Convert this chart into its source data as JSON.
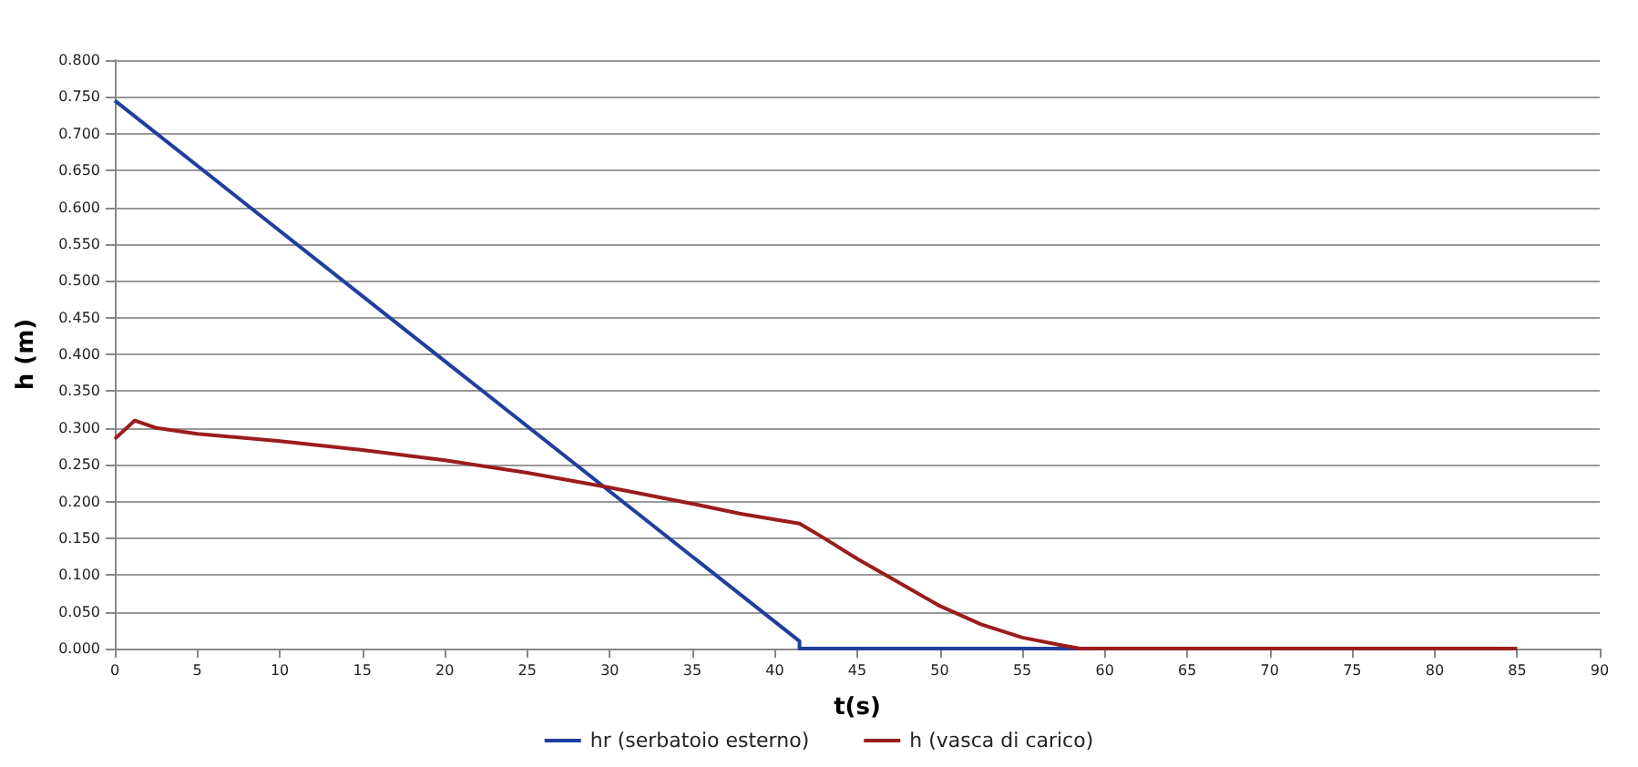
{
  "chart_data": {
    "type": "line",
    "xlabel": "t(s)",
    "ylabel": "h (m)",
    "xlim": [
      0,
      90
    ],
    "xticks": [
      0,
      5,
      10,
      15,
      20,
      25,
      30,
      35,
      40,
      45,
      50,
      55,
      60,
      65,
      70,
      75,
      80,
      85,
      90
    ],
    "ylim": [
      0,
      0.8
    ],
    "yticks": [
      {
        "value": 0,
        "label": "0.000"
      },
      {
        "value": 0.05,
        "label": "0.050"
      },
      {
        "value": 0.1,
        "label": "0.100"
      },
      {
        "value": 0.15,
        "label": "0.150"
      },
      {
        "value": 0.2,
        "label": "0.200"
      },
      {
        "value": 0.25,
        "label": "0.250"
      },
      {
        "value": 0.3,
        "label": "0.300"
      },
      {
        "value": 0.35,
        "label": "0.350"
      },
      {
        "value": 0.4,
        "label": "0.400"
      },
      {
        "value": 0.45,
        "label": "0.450"
      },
      {
        "value": 0.5,
        "label": "0.500"
      },
      {
        "value": 0.55,
        "label": "0.550"
      },
      {
        "value": 0.6,
        "label": "0.600"
      },
      {
        "value": 0.65,
        "label": "0.650"
      },
      {
        "value": 0.7,
        "label": "0.700"
      },
      {
        "value": 0.75,
        "label": "0.750"
      },
      {
        "value": 0.8,
        "label": "0.800"
      }
    ],
    "grid": "y",
    "legend": "bottom",
    "marker": "none",
    "line_style": "solid",
    "series": [
      {
        "name": "hr (serbatoio esterno)",
        "color": "#1f3f9f",
        "x": [
          0,
          41.5,
          41.5,
          58.5
        ],
        "values": [
          0.745,
          0.01,
          0,
          0
        ]
      },
      {
        "name": "h (vasca di carico)",
        "color": "#9b1c1c",
        "x": [
          0,
          1.2,
          2.5,
          5,
          10,
          15,
          20,
          25,
          30,
          35,
          38,
          41.5,
          43,
          45,
          47.5,
          50,
          52.5,
          55,
          57.5,
          58.5,
          85
        ],
        "values": [
          0.285,
          0.31,
          0.3,
          0.292,
          0.282,
          0.27,
          0.256,
          0.239,
          0.219,
          0.197,
          0.183,
          0.17,
          0.15,
          0.122,
          0.09,
          0.058,
          0.033,
          0.015,
          0.004,
          0,
          0
        ]
      }
    ]
  }
}
